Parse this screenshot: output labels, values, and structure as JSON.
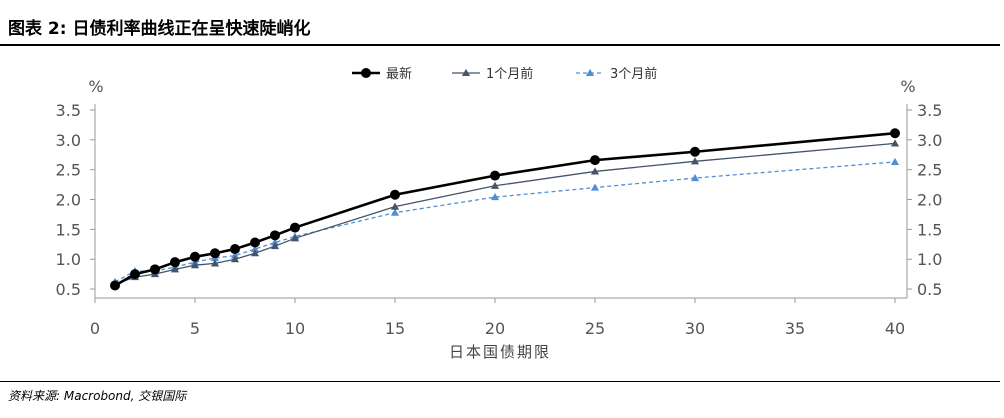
{
  "title": "图表 2: 日债利率曲线正在呈快速陡峭化",
  "source": "资料来源: Macrobond, 交银国际",
  "chart_data": {
    "type": "line",
    "xlabel": "日本国债期限",
    "y_unit_left": "%",
    "y_unit_right": "%",
    "xlim": [
      0,
      40
    ],
    "ylim": [
      0.35,
      3.6
    ],
    "x_ticks": [
      0,
      5,
      10,
      15,
      20,
      25,
      30,
      35,
      40
    ],
    "y_ticks": [
      0.5,
      1.0,
      1.5,
      2.0,
      2.5,
      3.0,
      3.5
    ],
    "y_tick_labels": [
      "0.5",
      "1.0",
      "1.5",
      "2.0",
      "2.5",
      "3.0",
      "3.5"
    ],
    "x_tick_labels": [
      "0",
      "5",
      "10",
      "15",
      "20",
      "25",
      "30",
      "35",
      "40"
    ],
    "x": [
      1,
      2,
      3,
      4,
      5,
      6,
      7,
      8,
      9,
      10,
      15,
      20,
      25,
      30,
      40
    ],
    "series": [
      {
        "name": "最新",
        "color": "#000000",
        "marker": "circle",
        "dashed": false,
        "values": [
          0.56,
          0.75,
          0.83,
          0.95,
          1.04,
          1.1,
          1.17,
          1.28,
          1.4,
          1.53,
          2.08,
          2.4,
          2.66,
          2.8,
          3.11
        ]
      },
      {
        "name": "1个月前",
        "color": "#44546a",
        "marker": "triangle",
        "dashed": false,
        "values": [
          0.58,
          0.7,
          0.75,
          0.83,
          0.9,
          0.93,
          1.0,
          1.1,
          1.22,
          1.35,
          1.88,
          2.23,
          2.47,
          2.64,
          2.94
        ]
      },
      {
        "name": "3个月前",
        "color": "#4f8fd6",
        "marker": "triangle",
        "dashed": true,
        "values": [
          0.62,
          0.8,
          0.8,
          0.87,
          0.95,
          1.02,
          1.06,
          1.17,
          1.28,
          1.38,
          1.78,
          2.04,
          2.2,
          2.36,
          2.63
        ]
      }
    ]
  }
}
